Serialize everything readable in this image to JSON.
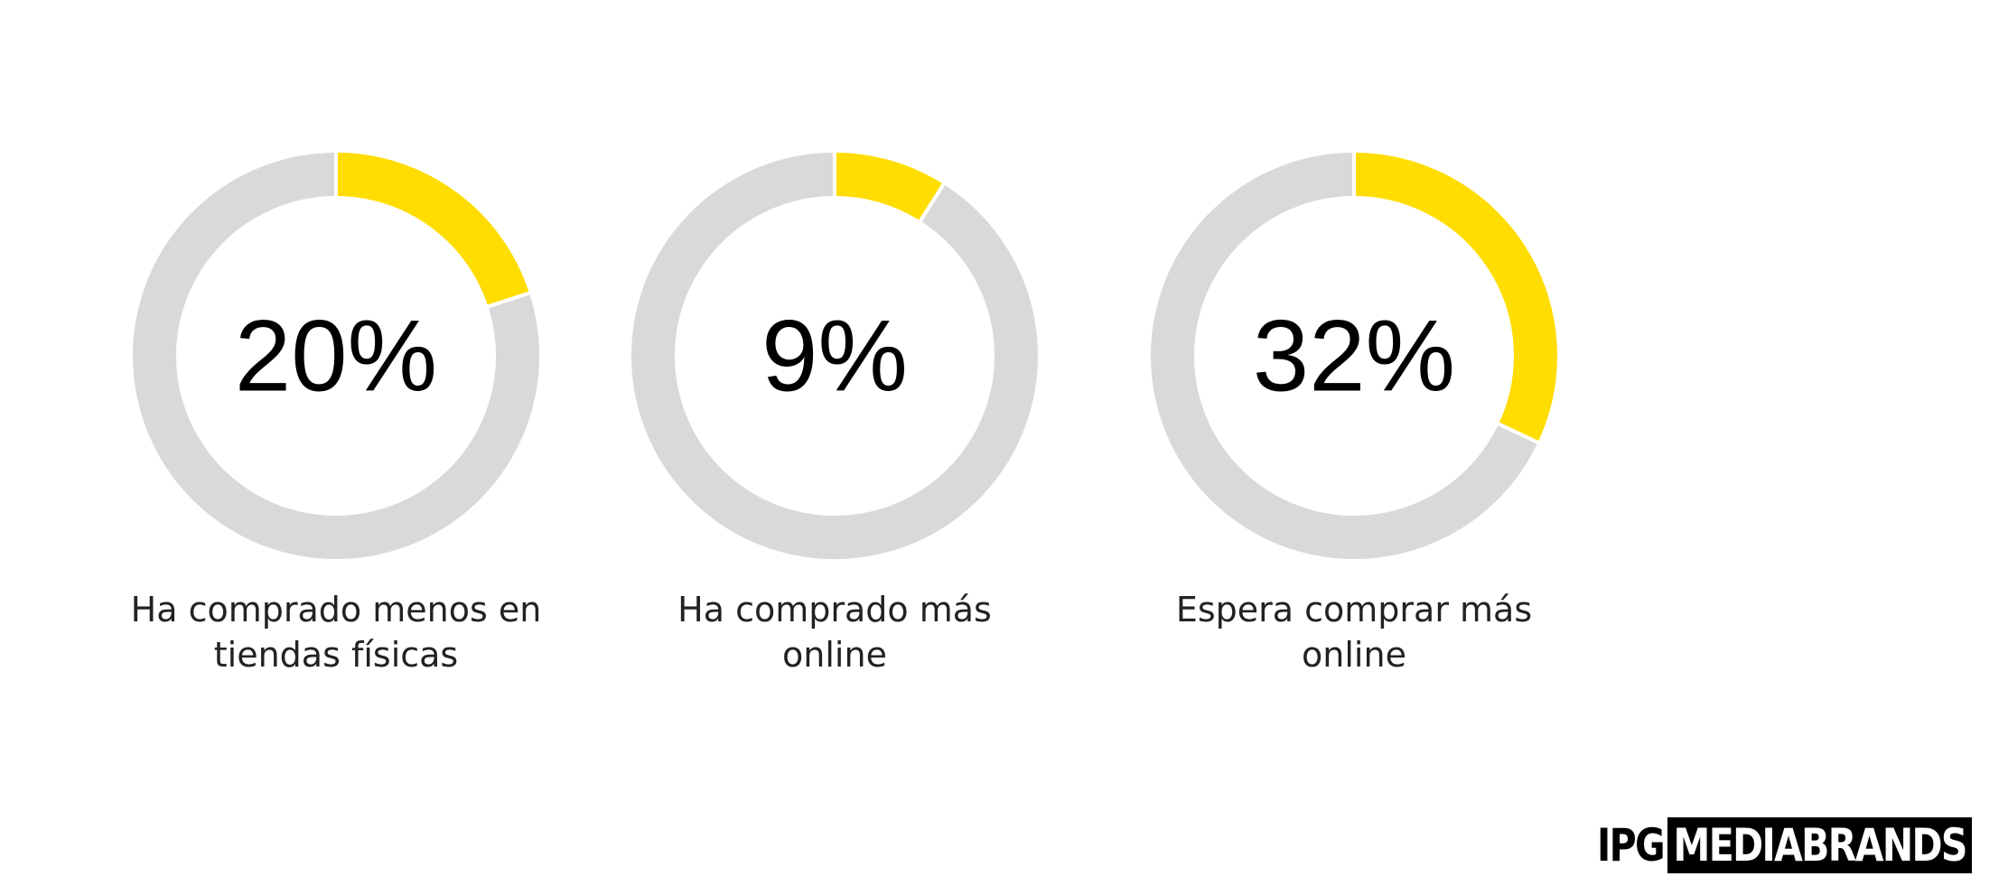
{
  "chart_data": [
    {
      "type": "donut",
      "categories": [
        "Ha comprado menos en tiendas físicas"
      ],
      "values": [
        20
      ],
      "value_labels": [
        "20%"
      ],
      "color": "#ffdd00",
      "track_color": "#d9d9d9"
    },
    {
      "type": "donut",
      "categories": [
        "Ha comprado más online"
      ],
      "values": [
        9
      ],
      "value_labels": [
        "9%"
      ],
      "color": "#ffdd00",
      "track_color": "#d9d9d9"
    },
    {
      "type": "donut",
      "categories": [
        "Espera comprar más online"
      ],
      "values": [
        32
      ],
      "value_labels": [
        "32%"
      ],
      "color": "#ffdd00",
      "track_color": "#d9d9d9"
    }
  ],
  "brand": {
    "prefix": "IPG",
    "name": "MEDIABRANDS"
  }
}
